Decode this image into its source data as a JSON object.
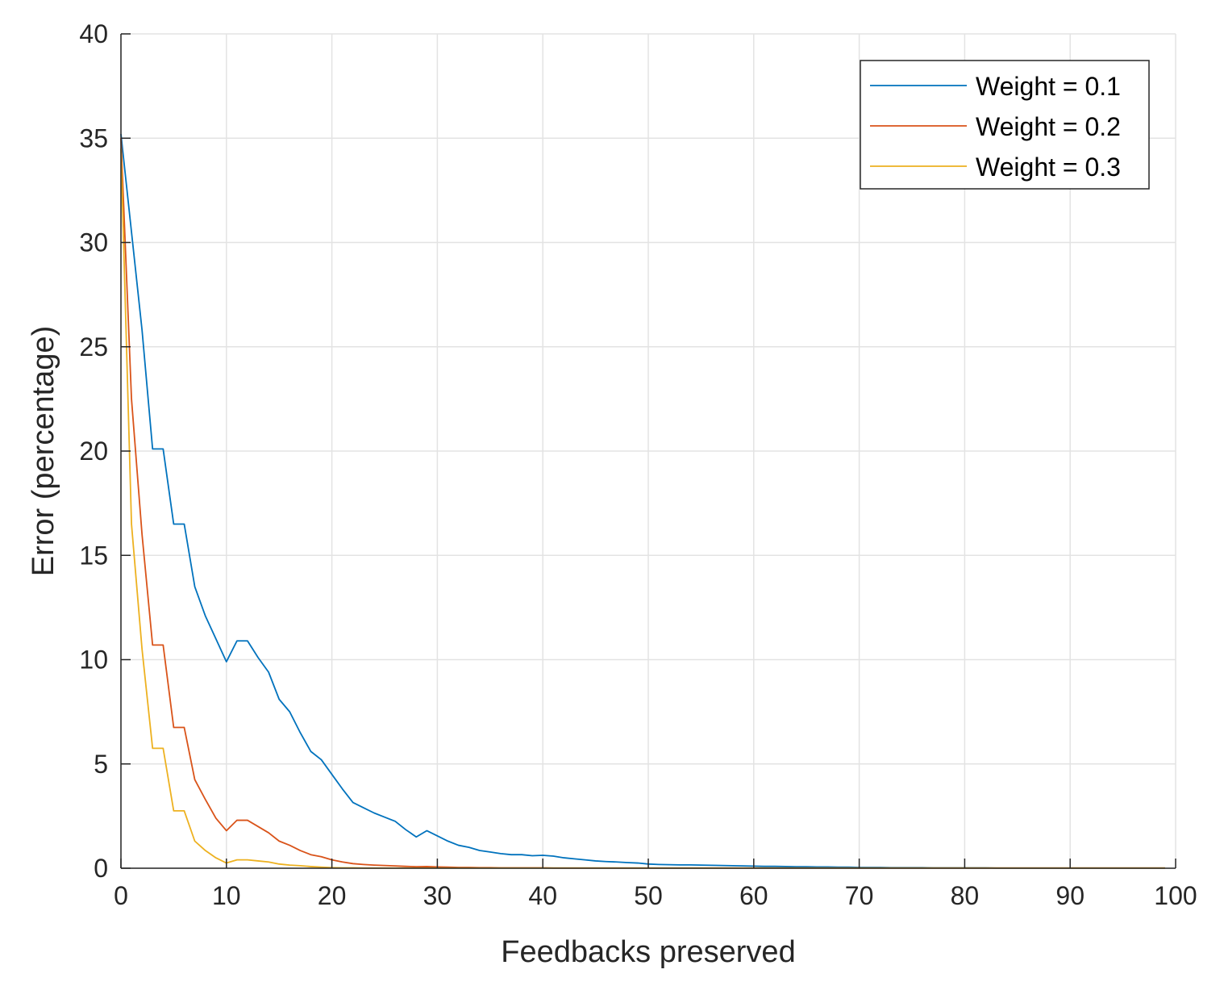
{
  "chart_data": {
    "type": "line",
    "title": "",
    "xlabel": "Feedbacks preserved",
    "ylabel": "Error (percentage)",
    "xlim": [
      0,
      100
    ],
    "ylim": [
      0,
      40
    ],
    "xticks": [
      0,
      10,
      20,
      30,
      40,
      50,
      60,
      70,
      80,
      90,
      100
    ],
    "yticks": [
      0,
      5,
      10,
      15,
      20,
      25,
      30,
      35,
      40
    ],
    "grid": true,
    "legend_position": "top-right",
    "x": [
      0,
      1,
      2,
      3,
      4,
      5,
      6,
      7,
      8,
      9,
      10,
      11,
      12,
      13,
      14,
      15,
      16,
      17,
      18,
      19,
      20,
      21,
      22,
      23,
      24,
      25,
      26,
      27,
      28,
      29,
      30,
      31,
      32,
      33,
      34,
      35,
      36,
      37,
      38,
      39,
      40,
      41,
      42,
      43,
      44,
      45,
      46,
      47,
      48,
      49,
      50,
      51,
      52,
      53,
      54,
      55,
      56,
      57,
      58,
      59,
      60,
      61,
      62,
      63,
      64,
      65,
      66,
      67,
      68,
      69,
      70,
      71,
      72,
      73,
      74,
      75,
      76,
      77,
      78,
      79,
      80,
      81,
      82,
      83,
      84,
      85,
      86,
      87,
      88,
      89,
      90,
      91,
      92,
      93,
      94,
      95,
      96,
      97,
      98,
      99
    ],
    "series": [
      {
        "name": "Weight = 0.1",
        "color": "#0072BD",
        "values": [
          35.2,
          30.5,
          25.8,
          20.1,
          20.1,
          16.5,
          16.5,
          13.5,
          12.1,
          11.0,
          9.9,
          10.9,
          10.9,
          10.1,
          9.4,
          8.1,
          7.5,
          6.5,
          5.6,
          5.2,
          4.5,
          3.8,
          3.15,
          2.9,
          2.65,
          2.45,
          2.25,
          1.85,
          1.5,
          1.8,
          1.55,
          1.3,
          1.1,
          1.0,
          0.85,
          0.78,
          0.7,
          0.65,
          0.65,
          0.6,
          0.62,
          0.58,
          0.5,
          0.45,
          0.4,
          0.35,
          0.32,
          0.3,
          0.27,
          0.25,
          0.2,
          0.18,
          0.17,
          0.16,
          0.16,
          0.15,
          0.14,
          0.13,
          0.12,
          0.11,
          0.1,
          0.09,
          0.09,
          0.08,
          0.07,
          0.07,
          0.06,
          0.06,
          0.05,
          0.05,
          0.04,
          0.04,
          0.04,
          0.03,
          0.03,
          0.03,
          0.03,
          0.02,
          0.02,
          0.02,
          0.02,
          0.02,
          0.02,
          0.01,
          0.01,
          0.01,
          0.01,
          0.01,
          0.01,
          0.01,
          0.01,
          0.01,
          0.01,
          0.01,
          0.01,
          0.01,
          0.01,
          0.01,
          0.01,
          0.01
        ]
      },
      {
        "name": "Weight = 0.2",
        "color": "#D95319",
        "values": [
          35.0,
          22.5,
          16.0,
          10.7,
          10.7,
          6.75,
          6.75,
          4.25,
          3.3,
          2.4,
          1.8,
          2.3,
          2.3,
          2.0,
          1.7,
          1.3,
          1.1,
          0.85,
          0.65,
          0.55,
          0.4,
          0.3,
          0.22,
          0.18,
          0.15,
          0.13,
          0.11,
          0.09,
          0.07,
          0.08,
          0.06,
          0.05,
          0.04,
          0.04,
          0.03,
          0.03,
          0.02,
          0.02,
          0.02,
          0.02,
          0.02,
          0.01,
          0.01,
          0.01,
          0.01,
          0.01,
          0.01,
          0.01,
          0.01,
          0.01,
          0.01,
          0.01,
          0.01,
          0.01,
          0.01,
          0.01,
          0.01,
          0.01,
          0.01,
          0.01,
          0.01,
          0.01,
          0.01,
          0.01,
          0.01,
          0.01,
          0.01,
          0.01,
          0.01,
          0.01,
          0.01,
          0.01,
          0.01,
          0.01,
          0.01,
          0.01,
          0.01,
          0.01,
          0.01,
          0.01,
          0.01,
          0.01,
          0.01,
          0.01,
          0.01,
          0.01,
          0.01,
          0.01,
          0.01,
          0.01,
          0.01,
          0.01,
          0.01,
          0.01,
          0.01,
          0.01,
          0.01,
          0.01,
          0.01,
          0.01
        ]
      },
      {
        "name": "Weight = 0.3",
        "color": "#EDB120",
        "values": [
          34.5,
          16.5,
          10.5,
          5.75,
          5.75,
          2.75,
          2.75,
          1.3,
          0.85,
          0.5,
          0.25,
          0.4,
          0.4,
          0.35,
          0.3,
          0.2,
          0.15,
          0.12,
          0.08,
          0.05,
          0.03,
          0.02,
          0.02,
          0.01,
          0.01,
          0.01,
          0.01,
          0.01,
          0.01,
          0.01,
          0.01,
          0.01,
          0.01,
          0.01,
          0.01,
          0.01,
          0.01,
          0.01,
          0.01,
          0.01,
          0.01,
          0.01,
          0.01,
          0.01,
          0.01,
          0.01,
          0.01,
          0.01,
          0.01,
          0.01,
          0.01,
          0.01,
          0.01,
          0.01,
          0.01,
          0.01,
          0.01,
          0.01,
          0.01,
          0.01,
          0.01,
          0.01,
          0.01,
          0.01,
          0.01,
          0.01,
          0.01,
          0.01,
          0.01,
          0.01,
          0.01,
          0.01,
          0.01,
          0.01,
          0.01,
          0.01,
          0.01,
          0.01,
          0.01,
          0.01,
          0.01,
          0.01,
          0.01,
          0.01,
          0.01,
          0.01,
          0.01,
          0.01,
          0.01,
          0.01,
          0.01,
          0.01,
          0.01,
          0.01,
          0.01,
          0.01,
          0.01,
          0.01,
          0.01,
          0.01
        ]
      }
    ]
  }
}
